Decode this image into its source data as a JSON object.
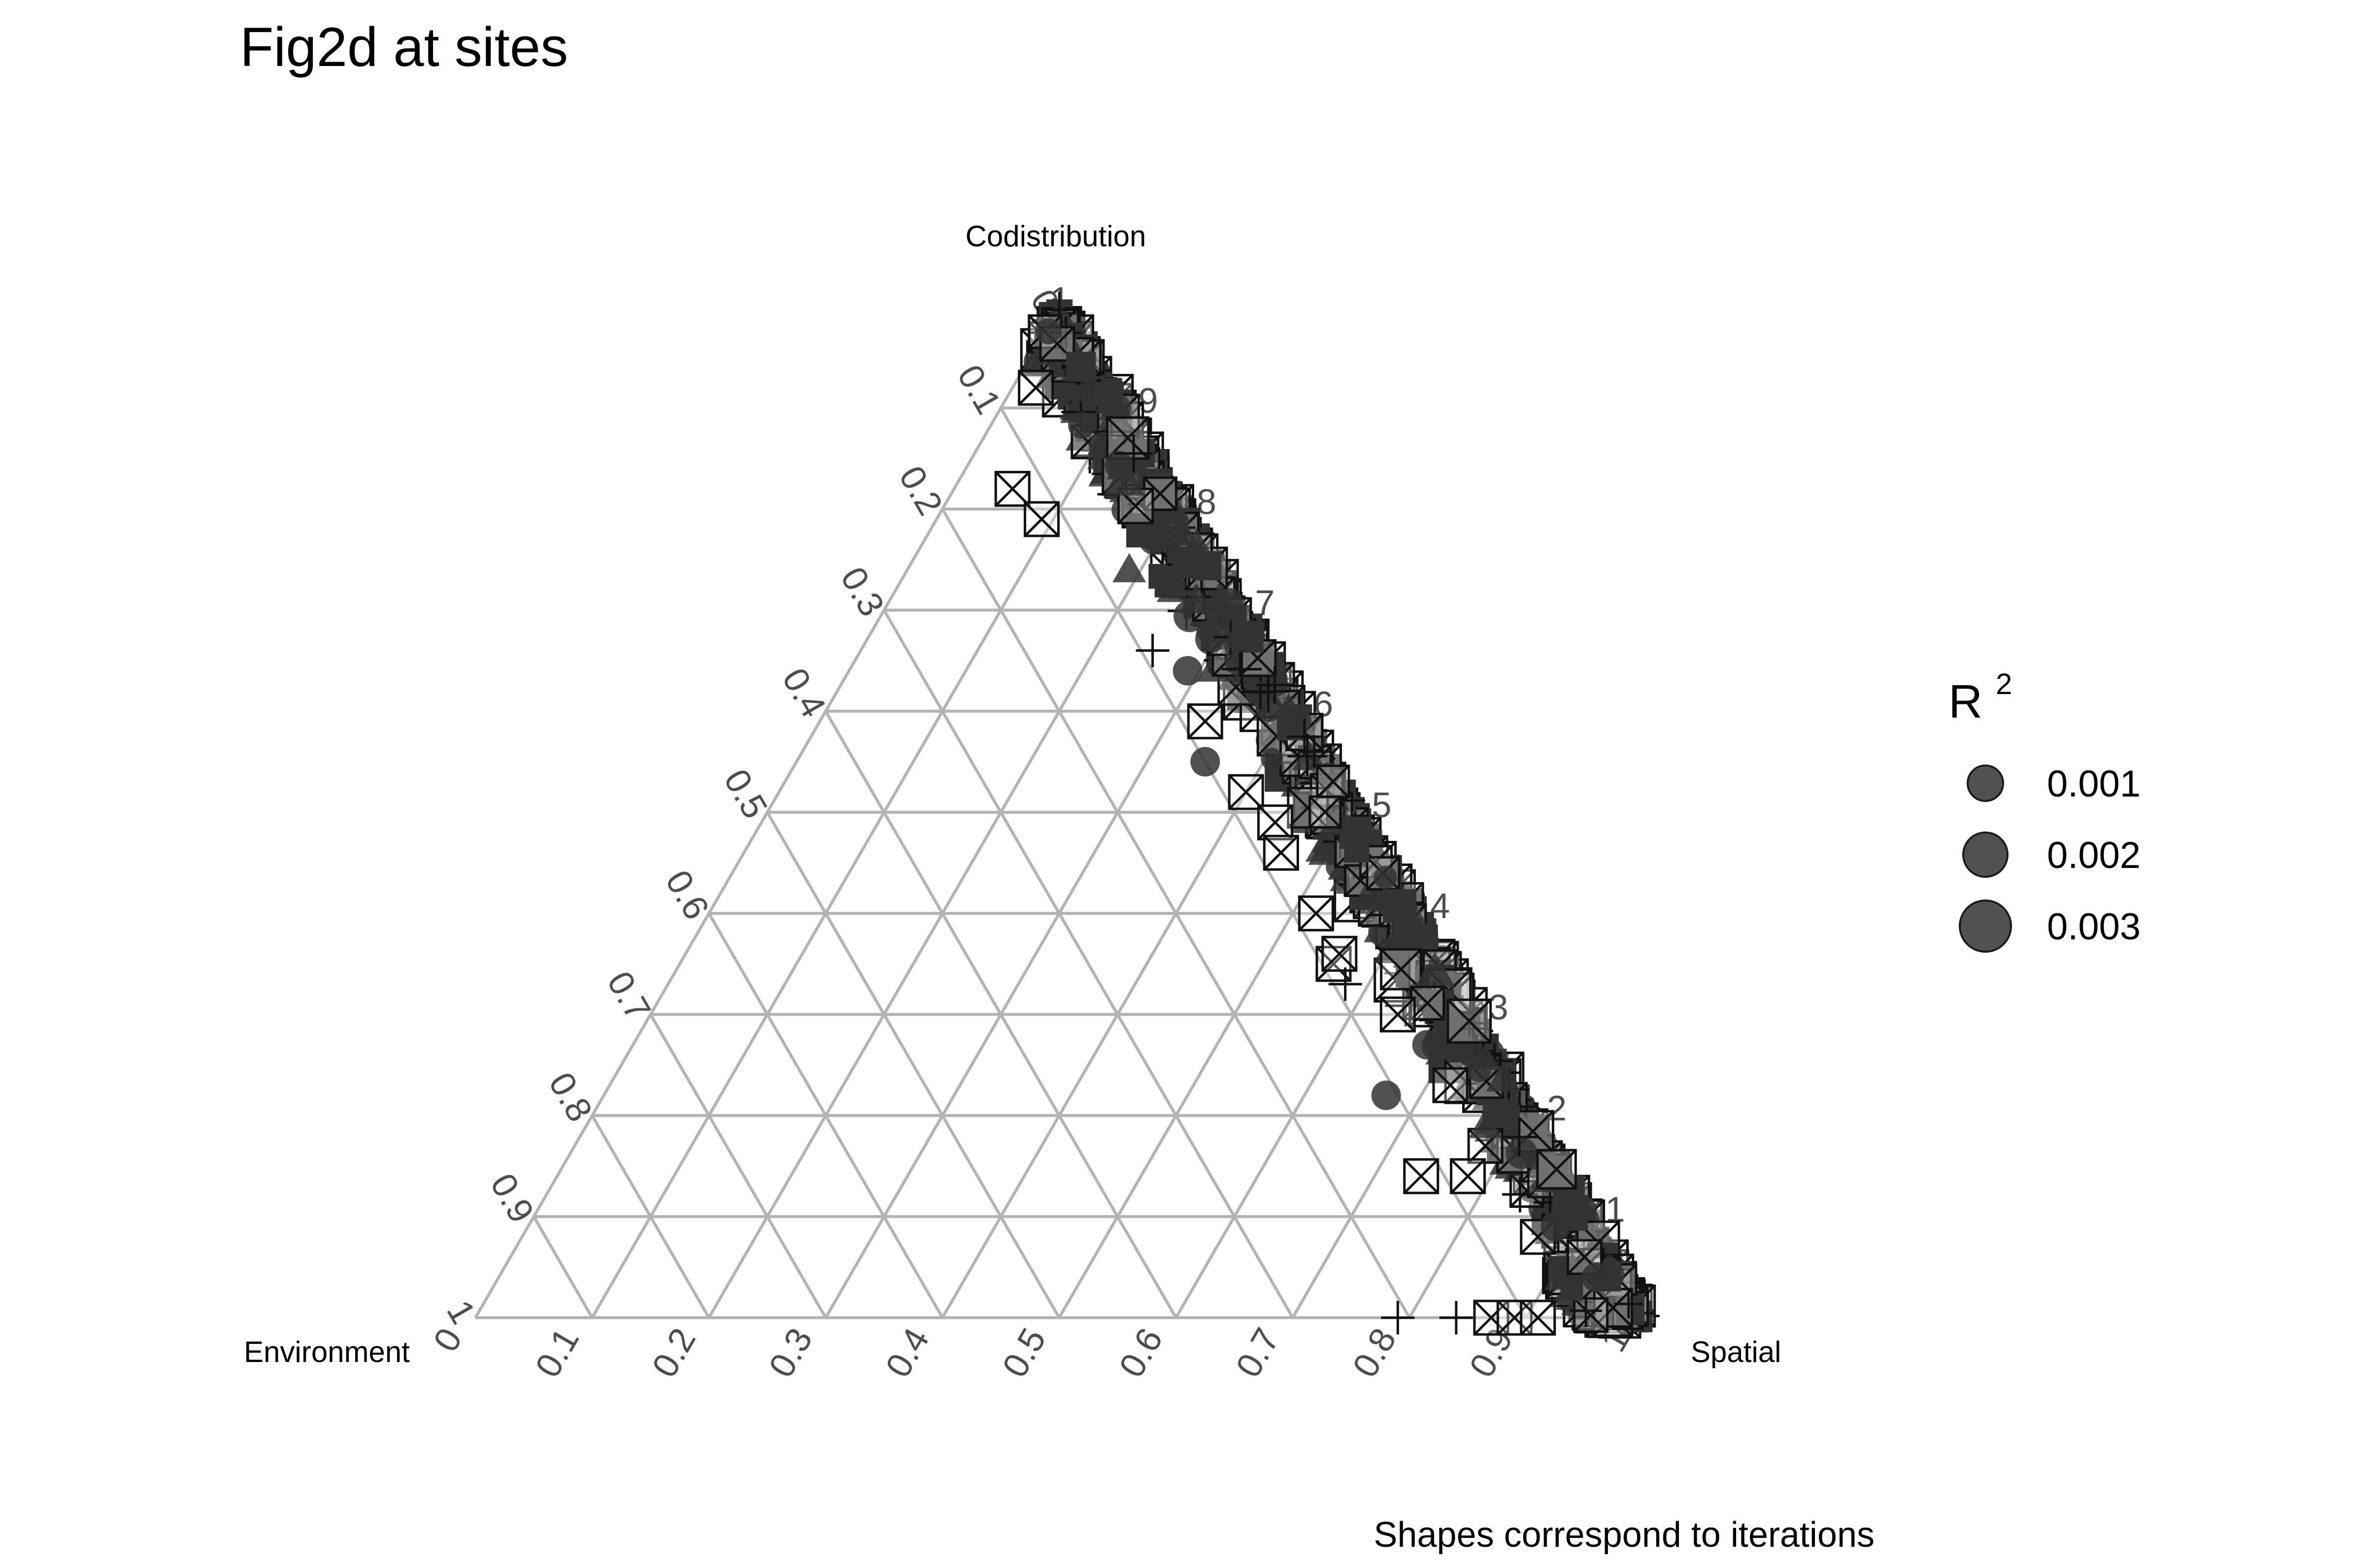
{
  "chart_data": {
    "type": "ternary-scatter",
    "title": "Fig2d at sites",
    "axes": {
      "top": "Codistribution",
      "left": "Environment",
      "right": "Spatial"
    },
    "ticks": [
      "0",
      "0.1",
      "0.2",
      "0.3",
      "0.4",
      "0.5",
      "0.6",
      "0.7",
      "0.8",
      "0.9",
      "1"
    ],
    "grid": true,
    "legend": {
      "title": "R",
      "title_superscript": "2",
      "placement": "right",
      "entries": [
        {
          "label": "0.001",
          "value": 0.001
        },
        {
          "label": "0.002",
          "value": 0.002
        },
        {
          "label": "0.003",
          "value": 0.003
        }
      ]
    },
    "caption": "Shapes correspond to iterations",
    "point_color": "#333333",
    "shapes": [
      "circle",
      "triangle",
      "square",
      "cross",
      "square-cross"
    ],
    "dense_band": {
      "description_env": 0.02,
      "codistribution_range": [
        0.0,
        0.99
      ]
    },
    "outlier_points": [
      {
        "env": 0.06,
        "codist": 0.92,
        "shape": "square-cross"
      },
      {
        "env": 0.13,
        "codist": 0.82,
        "shape": "square-cross"
      },
      {
        "env": 0.12,
        "codist": 0.79,
        "shape": "square-cross"
      },
      {
        "env": 0.07,
        "codist": 0.74,
        "shape": "triangle"
      },
      {
        "env": 0.09,
        "codist": 0.66,
        "shape": "cross"
      },
      {
        "env": 0.07,
        "codist": 0.64,
        "shape": "circle"
      },
      {
        "env": 0.08,
        "codist": 0.59,
        "shape": "square-cross"
      },
      {
        "env": 0.1,
        "codist": 0.55,
        "shape": "circle"
      },
      {
        "env": 0.08,
        "codist": 0.52,
        "shape": "square-cross"
      },
      {
        "env": 0.07,
        "codist": 0.49,
        "shape": "square-cross"
      },
      {
        "env": 0.08,
        "codist": 0.46,
        "shape": "square-cross"
      },
      {
        "env": 0.08,
        "codist": 0.4,
        "shape": "square-cross"
      },
      {
        "env": 0.09,
        "codist": 0.35,
        "shape": "square-cross"
      },
      {
        "env": 0.08,
        "codist": 0.36,
        "shape": "square-cross"
      },
      {
        "env": 0.09,
        "codist": 0.33,
        "shape": "cross"
      },
      {
        "env": 0.06,
        "codist": 0.3,
        "shape": "square-cross"
      },
      {
        "env": 0.05,
        "codist": 0.27,
        "shape": "circle"
      },
      {
        "env": 0.11,
        "codist": 0.22,
        "shape": "circle"
      },
      {
        "env": 0.05,
        "codist": 0.23,
        "shape": "square-cross"
      },
      {
        "env": 0.05,
        "codist": 0.17,
        "shape": "square-cross"
      },
      {
        "env": 0.12,
        "codist": 0.14,
        "shape": "square-cross"
      },
      {
        "env": 0.08,
        "codist": 0.14,
        "shape": "square-cross"
      },
      {
        "env": 0.04,
        "codist": 0.19,
        "shape": "triangle"
      },
      {
        "env": 0.05,
        "codist": 0.08,
        "shape": "square-cross"
      },
      {
        "env": 0.03,
        "codist": 0.09,
        "shape": "circle"
      },
      {
        "env": 0.05,
        "codist": 0.04,
        "shape": "triangle"
      },
      {
        "env": 0.02,
        "codist": 0.06,
        "shape": "square-cross"
      },
      {
        "env": 0.02,
        "codist": 0.04,
        "shape": "circle"
      },
      {
        "env": 0.21,
        "codist": 0.0,
        "shape": "cross"
      },
      {
        "env": 0.16,
        "codist": 0.0,
        "shape": "cross"
      },
      {
        "env": 0.13,
        "codist": 0.0,
        "shape": "square-cross"
      },
      {
        "env": 0.11,
        "codist": 0.0,
        "shape": "square-cross"
      },
      {
        "env": 0.09,
        "codist": 0.0,
        "shape": "square-cross"
      }
    ]
  }
}
